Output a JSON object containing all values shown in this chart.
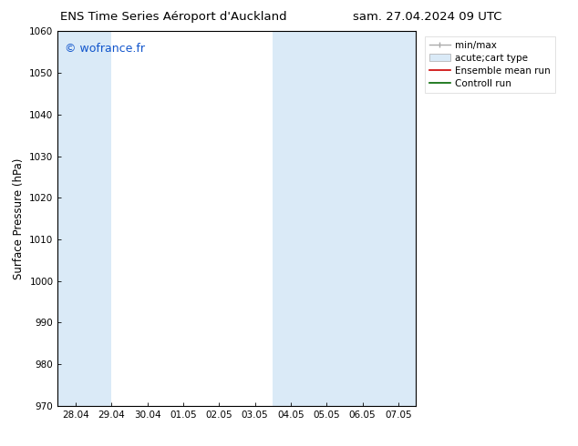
{
  "title_left": "ENS Time Series Aéroport d'Auckland",
  "title_right": "sam. 27.04.2024 09 UTC",
  "ylabel": "Surface Pressure (hPa)",
  "ylim": [
    970,
    1060
  ],
  "yticks": [
    970,
    980,
    990,
    1000,
    1010,
    1020,
    1030,
    1040,
    1050,
    1060
  ],
  "xtick_labels": [
    "28.04",
    "29.04",
    "30.04",
    "01.05",
    "02.05",
    "03.05",
    "04.05",
    "05.05",
    "06.05",
    "07.05"
  ],
  "shaded_color": "#daeaf7",
  "watermark": "© wofrance.fr",
  "watermark_color": "#1155cc",
  "legend_entries": [
    "min/max",
    "acute;cart type",
    "Ensemble mean run",
    "Controll run"
  ],
  "bg_color": "#ffffff",
  "spine_color": "#000000",
  "tick_color": "#000000"
}
